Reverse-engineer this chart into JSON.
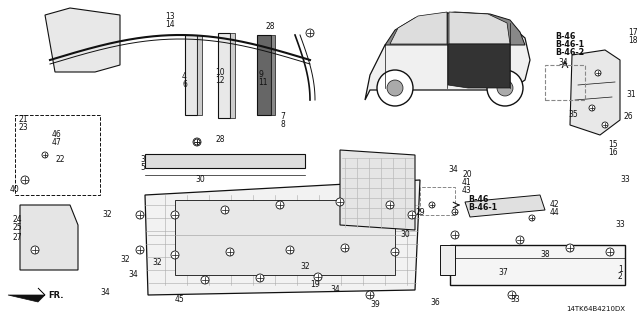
{
  "background_color": "#ffffff",
  "fig_width": 6.4,
  "fig_height": 3.2,
  "dpi": 100,
  "diagram_code": "14TK64B4210DX",
  "label_fontsize": 5.5,
  "bold_labels": [
    "B-46",
    "B-46-1",
    "B-46-2"
  ]
}
